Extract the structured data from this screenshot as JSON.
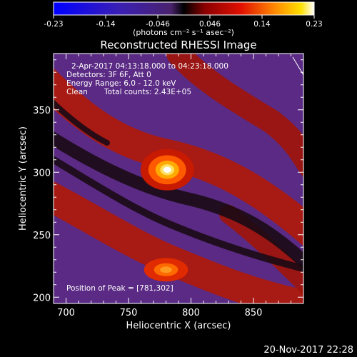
{
  "chart_data": {
    "type": "heatmap",
    "title": "Reconstructed RHESSI Image",
    "xlabel": "Heliocentric X (arcsec)",
    "ylabel": "Heliocentric Y (arcsec)",
    "xlim": [
      690,
      890
    ],
    "ylim": [
      195,
      395
    ],
    "x_ticks": [
      700,
      750,
      800,
      850
    ],
    "y_ticks": [
      200,
      250,
      300,
      350
    ],
    "colorbar": {
      "min": -0.23,
      "max": 0.23,
      "ticks": [
        "-0.23",
        "-0.14",
        "-0.046",
        "0.046",
        "0.14",
        "0.23"
      ],
      "unit_label": "(photons cm⁻² s⁻¹ asec⁻²)",
      "colormap": [
        "#0000ff",
        "#3a1fb4",
        "#5a2a8c",
        "#000000",
        "#c00000",
        "#ff5a00",
        "#ffd000",
        "#ffffff"
      ]
    },
    "annotations": {
      "time_range": "2-Apr-2017 04:13:18.000 to 04:23:18.000",
      "detectors": "Detectors: 3F 6F, Att 0",
      "energy": "Energy Range: 6.0 - 12.0 keV",
      "clean": "Clean",
      "total_counts": "Total counts: 2.43E+05",
      "peak": "Position of Peak = [781,302]"
    },
    "peak": {
      "x": 781,
      "y": 302,
      "value": 0.23
    },
    "secondary_source": {
      "x": 780,
      "y": 222
    },
    "grid": false
  },
  "footer": {
    "timestamp": "20-Nov-2017 22:28"
  }
}
